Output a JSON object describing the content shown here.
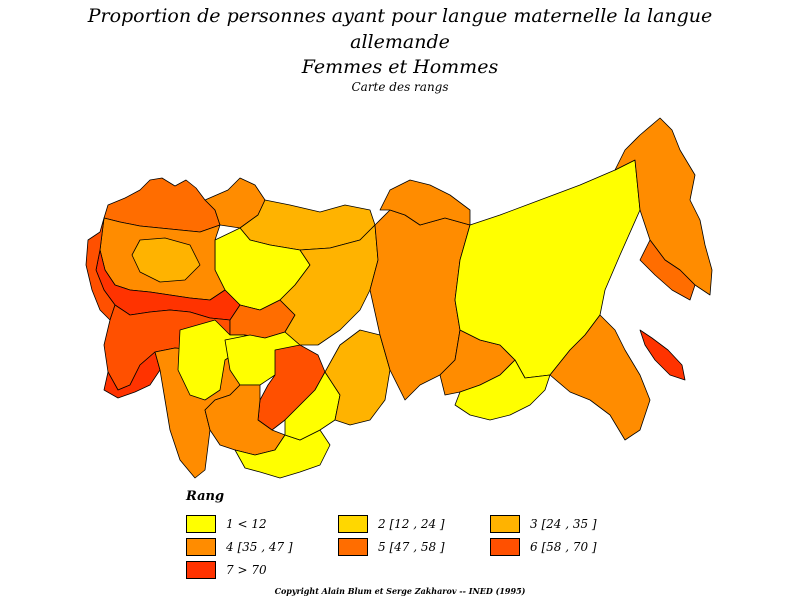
{
  "header": {
    "title_line1": "Proportion de personnes ayant pour langue maternelle la langue",
    "title_line2": "allemande",
    "title_line3": "Femmes et Hommes",
    "subtitle": "Carte des rangs"
  },
  "legend": {
    "title": "Rang",
    "items": [
      {
        "label": "1  <  12",
        "color": "#ffff00"
      },
      {
        "label": "2  [12  ,  24  ]",
        "color": "#ffd700"
      },
      {
        "label": "3  [24  ,  35  ]",
        "color": "#ffb300"
      },
      {
        "label": "4  [35  ,  47  ]",
        "color": "#ff8c00"
      },
      {
        "label": "5  [47  ,  58  ]",
        "color": "#ff6d00"
      },
      {
        "label": "6  [58  ,  70  ]",
        "color": "#ff5000"
      },
      {
        "label": "7  >  70",
        "color": "#ff3300"
      }
    ]
  },
  "footer": {
    "copyright": "Copyright Alain Blum et Serge Zakharov  --  INED (1995)"
  }
}
